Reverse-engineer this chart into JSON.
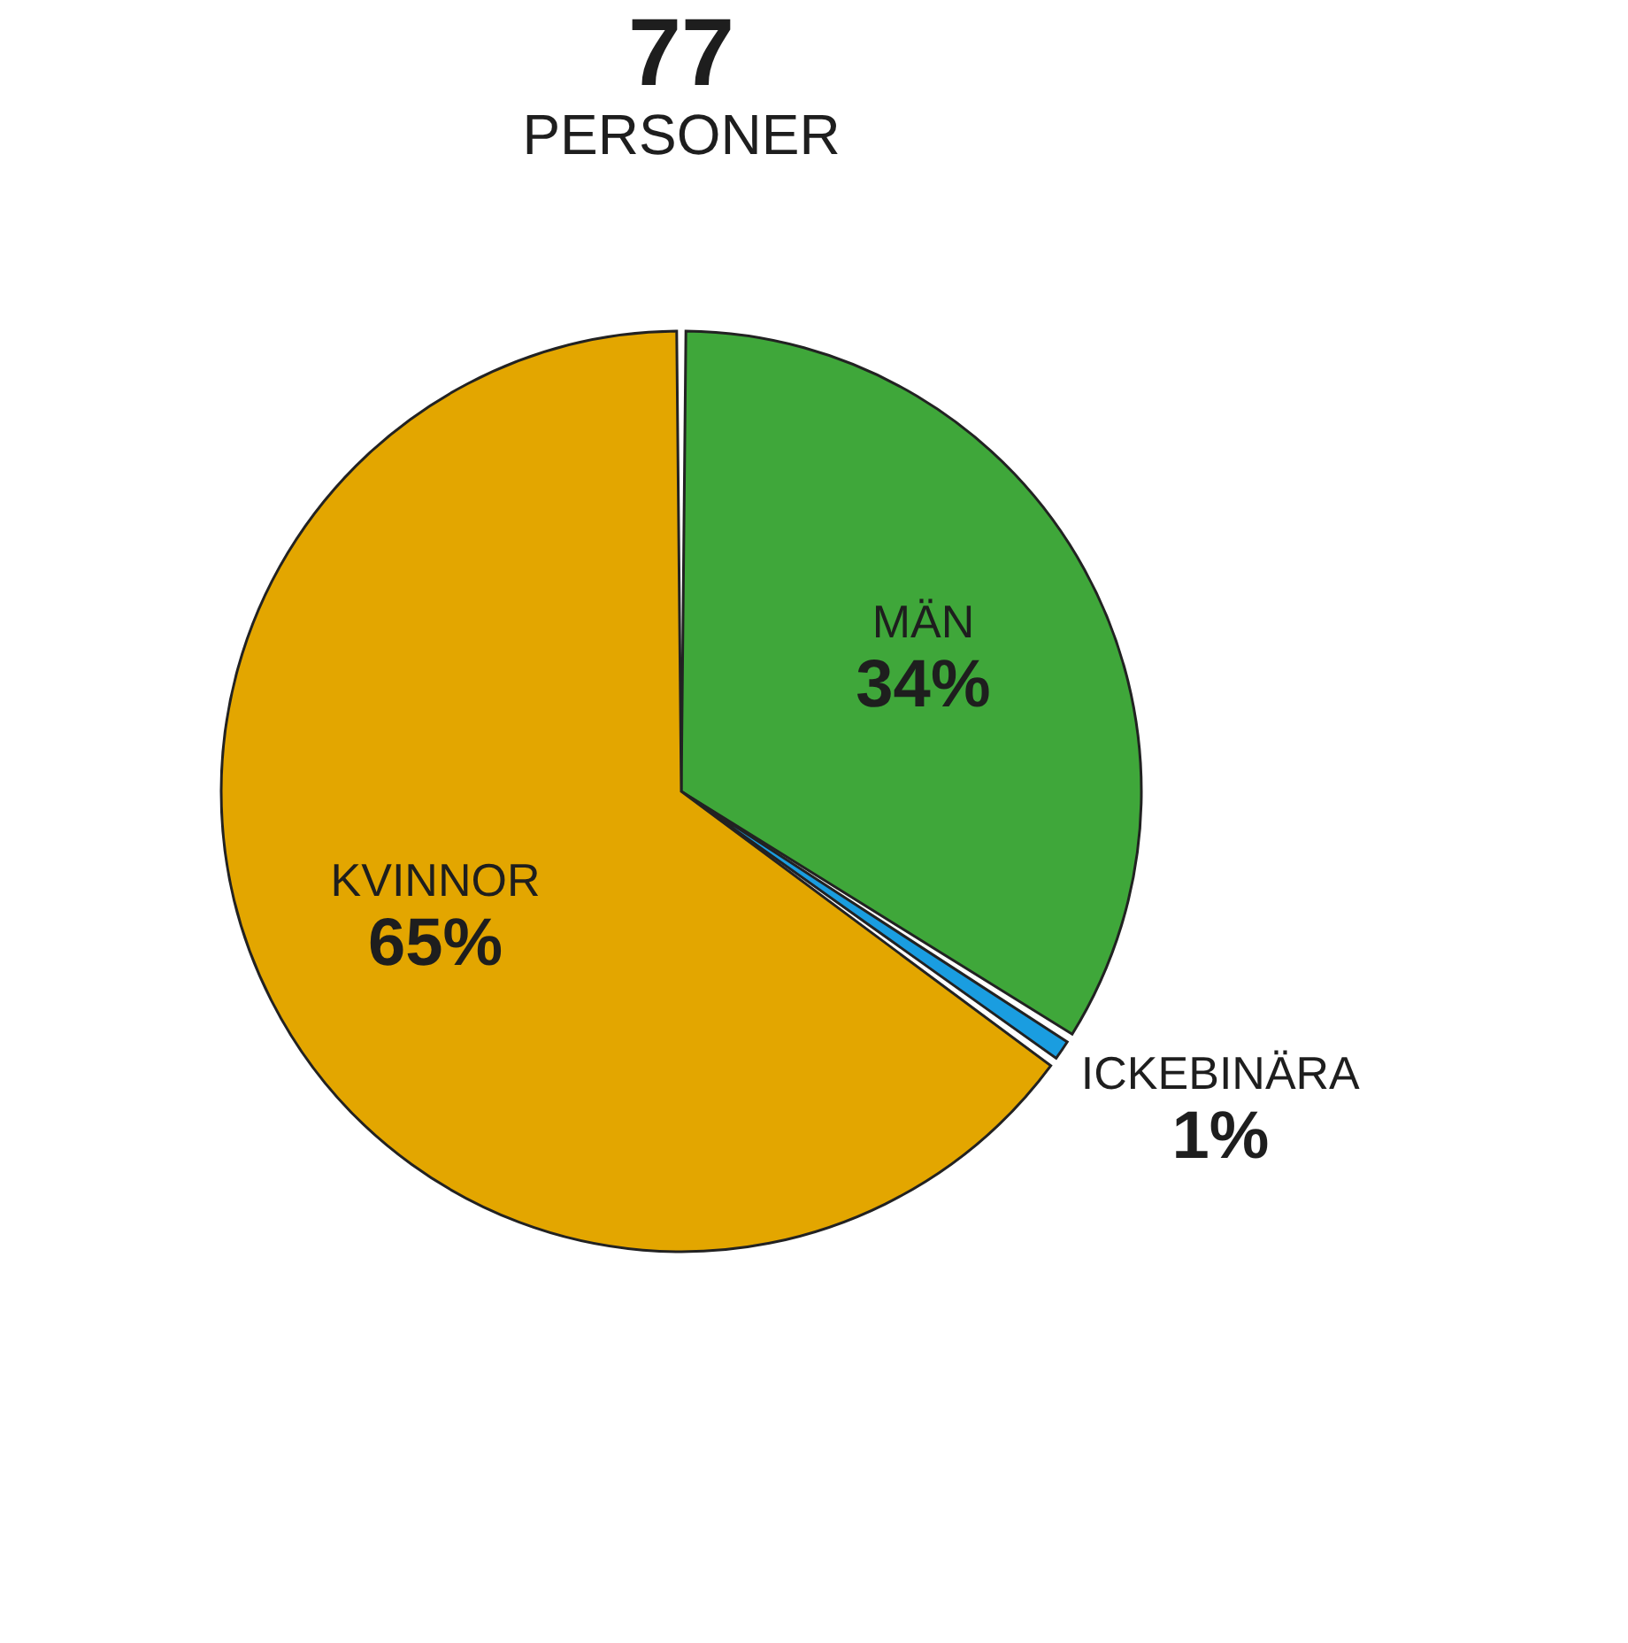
{
  "chart_data": {
    "type": "pie",
    "title": "77",
    "subtitle": "PERSONER",
    "categories": [
      "MÄN",
      "ICKEBINÄRA",
      "KVINNOR"
    ],
    "values": [
      34,
      1,
      65
    ],
    "value_labels": [
      "34%",
      "1%",
      "65%"
    ],
    "colors": [
      "#3fa73a",
      "#1a9de0",
      "#e3a600"
    ],
    "legend": false
  }
}
